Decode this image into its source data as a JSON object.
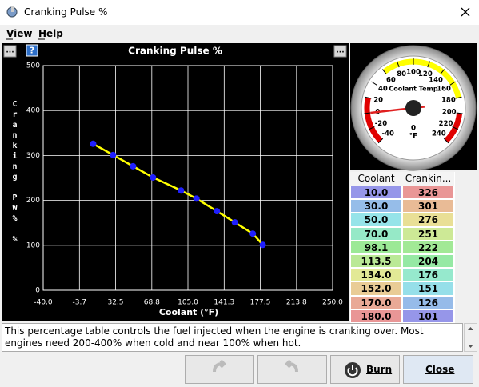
{
  "window": {
    "title": "Cranking Pulse %"
  },
  "menu": [
    "View",
    "Help"
  ],
  "chart_panel": {
    "left_button": "...",
    "help_button": "?",
    "right_button": "..."
  },
  "chart_data": {
    "type": "line",
    "title": "Cranking Pulse %",
    "x_label": "Coolant (°F)",
    "y_label": "Cranking PW% %",
    "x": [
      10,
      30,
      50,
      70,
      98.1,
      113.5,
      134,
      152,
      170,
      180
    ],
    "series": [
      {
        "name": "Cranking PW%",
        "color": "#ffff00",
        "marker_color": "#2020ff",
        "values": [
          326,
          301,
          276,
          251,
          222,
          204,
          176,
          151,
          126,
          101
        ]
      }
    ],
    "xlim": [
      -40,
      250
    ],
    "xticks": [
      {
        "value": -40,
        "label": "-40.0"
      },
      -3.7,
      32.5,
      68.8,
      {
        "value": 105,
        "label": "105.0"
      },
      141.3,
      177.5,
      213.8,
      {
        "value": 250,
        "label": "250.0"
      }
    ],
    "ylim": [
      0,
      500
    ],
    "yticks": [
      0,
      100,
      200,
      300,
      400,
      500
    ],
    "grid": true
  },
  "gauge": {
    "title": "Coolant Temp",
    "unit": "°F",
    "range": [
      -40,
      240
    ],
    "ticks": [
      -40,
      -20,
      0,
      20,
      40,
      60,
      80,
      100,
      120,
      140,
      160,
      180,
      200,
      220,
      240
    ],
    "zones": [
      {
        "from": -40,
        "to": 20,
        "color": "#e00000"
      },
      {
        "from": 60,
        "to": 180,
        "color": "#ffff00"
      },
      {
        "from": 200,
        "to": 240,
        "color": "#e00000"
      }
    ],
    "value": 0
  },
  "table": {
    "headers": [
      "Coolant",
      "Crankin..."
    ],
    "rows": [
      [
        "10.0",
        "326"
      ],
      [
        "30.0",
        "301"
      ],
      [
        "50.0",
        "276"
      ],
      [
        "70.0",
        "251"
      ],
      [
        "98.1",
        "222"
      ],
      [
        "113.5",
        "204"
      ],
      [
        "134.0",
        "176"
      ],
      [
        "152.0",
        "151"
      ],
      [
        "170.0",
        "126"
      ],
      [
        "180.0",
        "101"
      ]
    ]
  },
  "description": "This percentage table controls the fuel injected when the engine is cranking over. Most engines need 200-400% when cold and near 100% when hot.",
  "buttons": {
    "burn": "Burn",
    "close": "Close"
  }
}
